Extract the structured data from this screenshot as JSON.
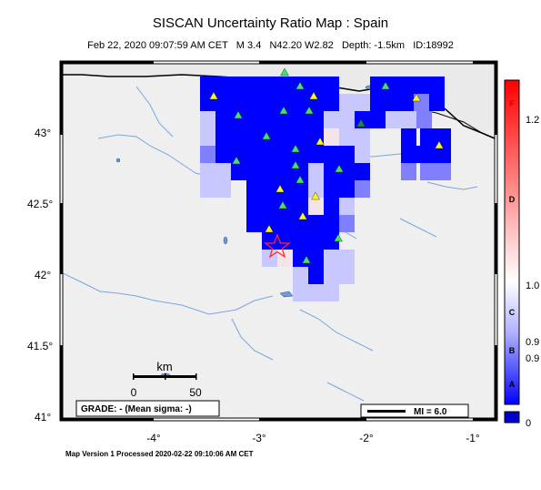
{
  "title": "SISCAN Uncertainty Ratio Map : Spain",
  "subtitle": "Feb 22, 2020 09:07:59 AM CET   M 3.4   N42.20 W2.82   Depth: -1.5km   ID:18992",
  "footer": "Map Version 1 Processed 2020-02-22 09:10:06 AM CET",
  "map": {
    "lat_labels": [
      "43°",
      "42.5°",
      "42°",
      "41.5°",
      "41°"
    ],
    "lon_labels": [
      "-4°",
      "-3°",
      "-2°",
      "-1°"
    ],
    "scale_bar": {
      "unit": "km",
      "min": "0",
      "max": "50"
    },
    "grade_box": "GRADE: - (Mean sigma: -)",
    "mi_box": "MI = 6.0",
    "land_color": "#efefef",
    "water_color": "#6f9bd6",
    "epicenter_color": "#ff2a2a"
  },
  "colorbar": {
    "grade_letters": [
      "F",
      "D",
      "C",
      "B",
      "A"
    ],
    "values": [
      "1.2",
      "1.0",
      "0.9",
      "0.9",
      "0"
    ]
  }
}
